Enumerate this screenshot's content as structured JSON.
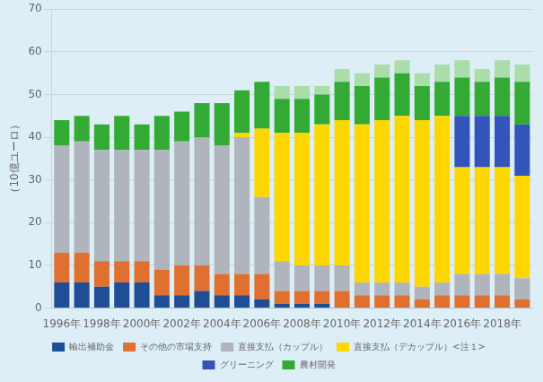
{
  "chart_data": {
    "type": "bar",
    "stacked": true,
    "grid": true,
    "legend": "bottom",
    "ylabel": "（10億ユーロ）",
    "categories": [
      "1996年",
      null,
      "1998年",
      null,
      "2000年",
      null,
      "2002年",
      null,
      "2004年",
      null,
      "2006年",
      null,
      "2008年",
      null,
      "2010年",
      null,
      "2012年",
      null,
      "2014年",
      null,
      "2016年",
      null,
      "2018年",
      null
    ],
    "ylim": [
      0,
      70
    ],
    "yticks": [
      0,
      10,
      20,
      30,
      40,
      50,
      60,
      70
    ],
    "series": [
      {
        "name": "輸出補助金",
        "color": "#1f4e96",
        "values": [
          6,
          6,
          5,
          6,
          6,
          3,
          3,
          4,
          3,
          3,
          2,
          1,
          1,
          1,
          0,
          0,
          0,
          0,
          0,
          0,
          0,
          0,
          0,
          0
        ]
      },
      {
        "name": "その他の市場支持",
        "color": "#e07030",
        "values": [
          7,
          7,
          6,
          5,
          5,
          6,
          7,
          6,
          5,
          5,
          6,
          3,
          3,
          3,
          4,
          3,
          3,
          3,
          2,
          3,
          3,
          3,
          3,
          2
        ]
      },
      {
        "name": "直接支払（カップル）",
        "color": "#b0b4bc",
        "values": [
          25,
          26,
          26,
          26,
          26,
          28,
          29,
          30,
          30,
          32,
          18,
          7,
          6,
          6,
          6,
          3,
          3,
          3,
          3,
          3,
          5,
          5,
          5,
          5
        ]
      },
      {
        "name": "直接支払（デカップル）<注１>",
        "color": "#ffd700",
        "values": [
          0,
          0,
          0,
          0,
          0,
          0,
          0,
          0,
          0,
          1,
          16,
          30,
          31,
          33,
          34,
          37,
          38,
          39,
          39,
          39,
          25,
          25,
          25,
          24
        ]
      },
      {
        "name": "グリーニング",
        "color": "#3355bb",
        "values": [
          0,
          0,
          0,
          0,
          0,
          0,
          0,
          0,
          0,
          0,
          0,
          0,
          0,
          0,
          0,
          0,
          0,
          0,
          0,
          0,
          12,
          12,
          12,
          12
        ]
      },
      {
        "name": "農村開発",
        "color": "#33aa33",
        "values": [
          6,
          6,
          6,
          8,
          6,
          8,
          7,
          8,
          10,
          10,
          11,
          8,
          8,
          7,
          9,
          9,
          10,
          10,
          8,
          8,
          9,
          8,
          9,
          10
        ]
      },
      {
        "color": "#aaddaa",
        "values": [
          0,
          0,
          0,
          0,
          0,
          0,
          0,
          0,
          0,
          0,
          0,
          3,
          3,
          2,
          3,
          3,
          3,
          3,
          3,
          4,
          4,
          3,
          4,
          4
        ]
      }
    ]
  }
}
